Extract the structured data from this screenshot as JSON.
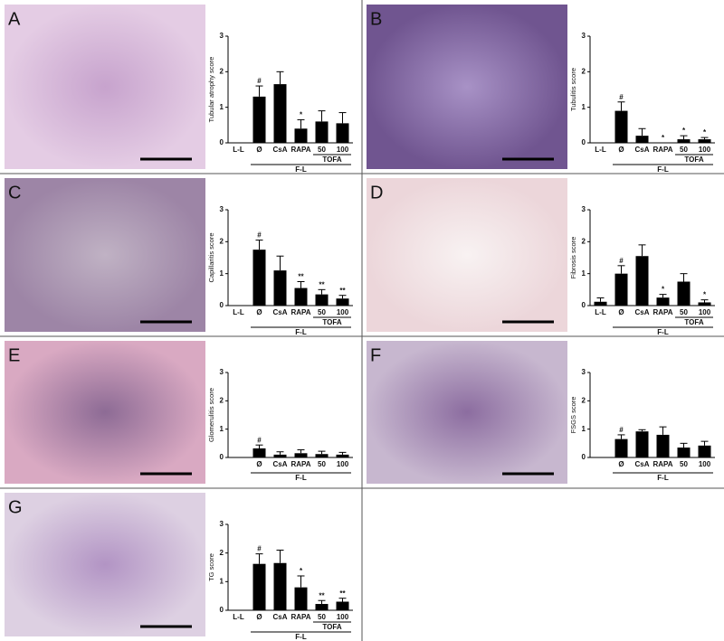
{
  "chart_data": [
    {
      "type": "bar",
      "panel": "A",
      "ylabel": "Tubular atrophy score",
      "categories": [
        "L-L",
        "Ø",
        "CsA",
        "RAPA",
        "50",
        "100"
      ],
      "values": [
        0,
        1.3,
        1.65,
        0.4,
        0.6,
        0.55
      ],
      "errors": [
        0,
        0.3,
        0.35,
        0.25,
        0.3,
        0.3
      ],
      "annotations": [
        null,
        "#",
        null,
        "*",
        null,
        null
      ],
      "groups": [
        {
          "label": "F-L",
          "from": 1,
          "to": 5
        },
        {
          "label": "TOFA",
          "from": 4,
          "to": 5
        }
      ],
      "ylim": [
        0,
        3
      ],
      "yticks": [
        0,
        1,
        2,
        3
      ],
      "color": "#000000"
    },
    {
      "type": "bar",
      "panel": "B",
      "ylabel": "Tubulitis score",
      "categories": [
        "L-L",
        "Ø",
        "CsA",
        "RAPA",
        "50",
        "100"
      ],
      "values": [
        0,
        0.9,
        0.2,
        0,
        0.1,
        0.1
      ],
      "errors": [
        0,
        0.25,
        0.2,
        0,
        0.1,
        0.05
      ],
      "annotations": [
        null,
        "#",
        null,
        "*",
        "*",
        "*"
      ],
      "groups": [
        {
          "label": "F-L",
          "from": 1,
          "to": 5
        },
        {
          "label": "TOFA",
          "from": 4,
          "to": 5
        }
      ],
      "ylim": [
        0,
        3
      ],
      "yticks": [
        0,
        1,
        2,
        3
      ],
      "color": "#000000"
    },
    {
      "type": "bar",
      "panel": "C",
      "ylabel": "Capillaritis score",
      "categories": [
        "L-L",
        "Ø",
        "CsA",
        "RAPA",
        "50",
        "100"
      ],
      "values": [
        0,
        1.75,
        1.1,
        0.55,
        0.35,
        0.22
      ],
      "errors": [
        0,
        0.3,
        0.45,
        0.2,
        0.15,
        0.1
      ],
      "annotations": [
        null,
        "#",
        null,
        "**",
        "**",
        "**"
      ],
      "groups": [
        {
          "label": "F-L",
          "from": 1,
          "to": 5
        },
        {
          "label": "TOFA",
          "from": 4,
          "to": 5
        }
      ],
      "ylim": [
        0,
        3
      ],
      "yticks": [
        0,
        1,
        2,
        3
      ],
      "color": "#000000"
    },
    {
      "type": "bar",
      "panel": "D",
      "ylabel": "Fibrosis score",
      "categories": [
        "L-L",
        "Ø",
        "CsA",
        "RAPA",
        "50",
        "100"
      ],
      "values": [
        0.12,
        1.0,
        1.55,
        0.25,
        0.75,
        0.1
      ],
      "errors": [
        0.12,
        0.25,
        0.35,
        0.1,
        0.25,
        0.08
      ],
      "annotations": [
        null,
        "#",
        null,
        "*",
        null,
        "*"
      ],
      "groups": [
        {
          "label": "F-L",
          "from": 1,
          "to": 5
        },
        {
          "label": "TOFA",
          "from": 4,
          "to": 5
        }
      ],
      "ylim": [
        0,
        3
      ],
      "yticks": [
        0,
        1,
        2,
        3
      ],
      "color": "#000000"
    },
    {
      "type": "bar",
      "panel": "E",
      "ylabel": "Glomerulitis score",
      "categories": [
        null,
        "Ø",
        "CsA",
        "RAPA",
        "50",
        "100"
      ],
      "values": [
        null,
        0.32,
        0.1,
        0.15,
        0.12,
        0.1
      ],
      "errors": [
        null,
        0.12,
        0.1,
        0.12,
        0.1,
        0.08
      ],
      "annotations": [
        null,
        "#",
        null,
        null,
        null,
        null
      ],
      "groups": [
        {
          "label": "F-L",
          "from": 1,
          "to": 5
        }
      ],
      "ylim": [
        0,
        3
      ],
      "yticks": [
        0,
        1,
        2,
        3
      ],
      "color": "#000000"
    },
    {
      "type": "bar",
      "panel": "F",
      "ylabel": "FSGS score",
      "categories": [
        null,
        "Ø",
        "CsA",
        "RAPA",
        "50",
        "100"
      ],
      "values": [
        null,
        0.65,
        0.92,
        0.8,
        0.35,
        0.42
      ],
      "errors": [
        null,
        0.15,
        0.06,
        0.28,
        0.15,
        0.15
      ],
      "annotations": [
        null,
        "#",
        null,
        null,
        null,
        null
      ],
      "groups": [
        {
          "label": "F-L",
          "from": 1,
          "to": 5
        }
      ],
      "ylim": [
        0,
        3
      ],
      "yticks": [
        0,
        1,
        2,
        3
      ],
      "color": "#000000"
    },
    {
      "type": "bar",
      "panel": "G",
      "ylabel": "TG score",
      "categories": [
        "L-L",
        "Ø",
        "CsA",
        "RAPA",
        "50",
        "100"
      ],
      "values": [
        0,
        1.62,
        1.65,
        0.8,
        0.22,
        0.3
      ],
      "errors": [
        0,
        0.35,
        0.45,
        0.4,
        0.12,
        0.12
      ],
      "annotations": [
        null,
        "#",
        null,
        "*",
        "**",
        "**"
      ],
      "groups": [
        {
          "label": "F-L",
          "from": 1,
          "to": 5
        },
        {
          "label": "TOFA",
          "from": 4,
          "to": 5
        }
      ],
      "ylim": [
        0,
        3
      ],
      "yticks": [
        0,
        1,
        2,
        3
      ],
      "color": "#000000"
    }
  ]
}
